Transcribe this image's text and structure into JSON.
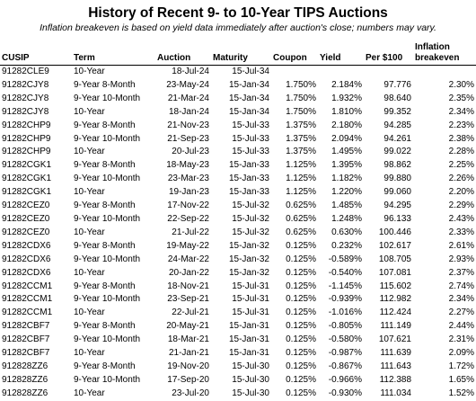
{
  "title": "History of Recent 9- to 10-Year TIPS Auctions",
  "subtitle": "Inflation breakeven is based on yield data immediately after auction's close; numbers may vary.",
  "columns": [
    "CUSIP",
    "Term",
    "Auction",
    "Maturity",
    "Coupon",
    "Yield",
    "Per $100",
    "Inflation breakeven"
  ],
  "rows": [
    [
      "91282CLE9",
      "10-Year",
      "18-Jul-24",
      "15-Jul-34",
      "",
      "",
      "",
      ""
    ],
    [
      "91282CJY8",
      "9-Year 8-Month",
      "23-May-24",
      "15-Jan-34",
      "1.750%",
      "2.184%",
      "97.776",
      "2.30%"
    ],
    [
      "91282CJY8",
      "9-Year 10-Month",
      "21-Mar-24",
      "15-Jan-34",
      "1.750%",
      "1.932%",
      "98.640",
      "2.35%"
    ],
    [
      "91282CJY8",
      "10-Year",
      "18-Jan-24",
      "15-Jan-34",
      "1.750%",
      "1.810%",
      "99.352",
      "2.34%"
    ],
    [
      "91282CHP9",
      "9-Year 8-Month",
      "21-Nov-23",
      "15-Jul-33",
      "1.375%",
      "2.180%",
      "94.285",
      "2.23%"
    ],
    [
      "91282CHP9",
      "9-Year 10-Month",
      "21-Sep-23",
      "15-Jul-33",
      "1.375%",
      "2.094%",
      "94.261",
      "2.38%"
    ],
    [
      "91282CHP9",
      "10-Year",
      "20-Jul-23",
      "15-Jul-33",
      "1.375%",
      "1.495%",
      "99.022",
      "2.28%"
    ],
    [
      "91282CGK1",
      "9-Year 8-Month",
      "18-May-23",
      "15-Jan-33",
      "1.125%",
      "1.395%",
      "98.862",
      "2.25%"
    ],
    [
      "91282CGK1",
      "9-Year 10-Month",
      "23-Mar-23",
      "15-Jan-33",
      "1.125%",
      "1.182%",
      "99.880",
      "2.26%"
    ],
    [
      "91282CGK1",
      "10-Year",
      "19-Jan-23",
      "15-Jan-33",
      "1.125%",
      "1.220%",
      "99.060",
      "2.20%"
    ],
    [
      "91282CEZ0",
      "9-Year 8-Month",
      "17-Nov-22",
      "15-Jul-32",
      "0.625%",
      "1.485%",
      "94.295",
      "2.29%"
    ],
    [
      "91282CEZ0",
      "9-Year 10-Month",
      "22-Sep-22",
      "15-Jul-32",
      "0.625%",
      "1.248%",
      "96.133",
      "2.43%"
    ],
    [
      "91282CEZ0",
      "10-Year",
      "21-Jul-22",
      "15-Jul-32",
      "0.625%",
      "0.630%",
      "100.446",
      "2.33%"
    ],
    [
      "91282CDX6",
      "9-Year 8-Month",
      "19-May-22",
      "15-Jan-32",
      "0.125%",
      "0.232%",
      "102.617",
      "2.61%"
    ],
    [
      "91282CDX6",
      "9-Year 10-Month",
      "24-Mar-22",
      "15-Jan-32",
      "0.125%",
      "-0.589%",
      "108.705",
      "2.93%"
    ],
    [
      "91282CDX6",
      "10-Year",
      "20-Jan-22",
      "15-Jan-32",
      "0.125%",
      "-0.540%",
      "107.081",
      "2.37%"
    ],
    [
      "91282CCM1",
      "9-Year 8-Month",
      "18-Nov-21",
      "15-Jul-31",
      "0.125%",
      "-1.145%",
      "115.602",
      "2.74%"
    ],
    [
      "91282CCM1",
      "9-Year 10-Month",
      "23-Sep-21",
      "15-Jul-31",
      "0.125%",
      "-0.939%",
      "112.982",
      "2.34%"
    ],
    [
      "91282CCM1",
      "10-Year",
      "22-Jul-21",
      "15-Jul-31",
      "0.125%",
      "-1.016%",
      "112.424",
      "2.27%"
    ],
    [
      "91282CBF7",
      "9-Year 8-Month",
      "20-May-21",
      "15-Jan-31",
      "0.125%",
      "-0.805%",
      "111.149",
      "2.44%"
    ],
    [
      "91282CBF7",
      "9-Year 10-Month",
      "18-Mar-21",
      "15-Jan-31",
      "0.125%",
      "-0.580%",
      "107.621",
      "2.31%"
    ],
    [
      "91282CBF7",
      "10-Year",
      "21-Jan-21",
      "15-Jan-31",
      "0.125%",
      "-0.987%",
      "111.639",
      "2.09%"
    ],
    [
      "912828ZZ6",
      "9-Year 8-Month",
      "19-Nov-20",
      "15-Jul-30",
      "0.125%",
      "-0.867%",
      "111.643",
      "1.72%"
    ],
    [
      "912828ZZ6",
      "9-Year 10-Month",
      "17-Sep-20",
      "15-Jul-30",
      "0.125%",
      "-0.966%",
      "112.388",
      "1.65%"
    ],
    [
      "912828ZZ6",
      "10-Year",
      "23-Jul-20",
      "15-Jul-30",
      "0.125%",
      "-0.930%",
      "111.034",
      "1.52%"
    ]
  ]
}
